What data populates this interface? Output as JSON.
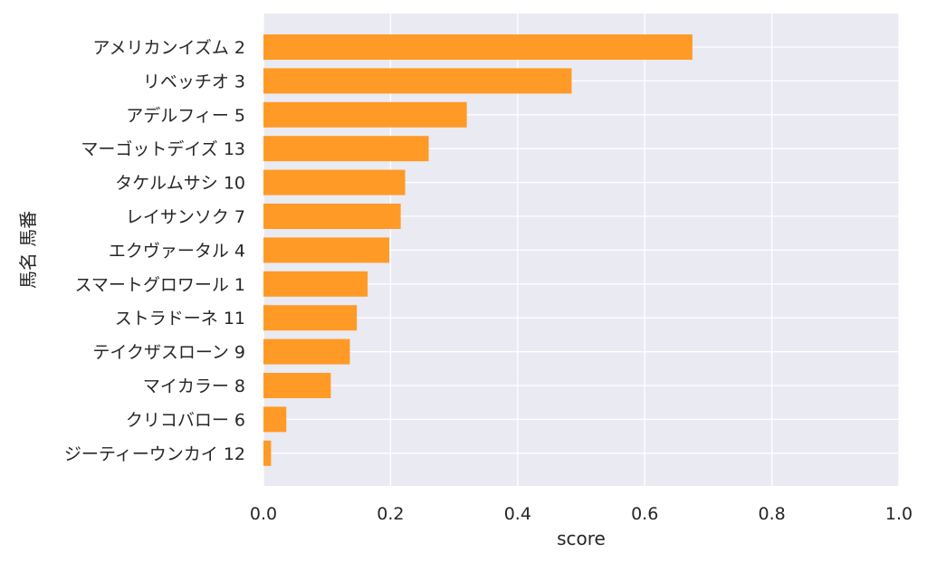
{
  "chart_data": {
    "type": "bar",
    "orientation": "horizontal",
    "categories": [
      "アメリカンイズム 2",
      "リベッチオ 3",
      "アデルフィー 5",
      "マーゴットデイズ 13",
      "タケルムサシ 10",
      "レイサンソク 7",
      "エクヴァータル 4",
      "スマートグロワール 1",
      "ストラドーネ 11",
      "テイクザスローン 9",
      "マイカラー 8",
      "クリコバロー 6",
      "ジーティーウンカイ 12"
    ],
    "values": [
      0.675,
      0.485,
      0.32,
      0.26,
      0.223,
      0.216,
      0.198,
      0.164,
      0.147,
      0.136,
      0.106,
      0.036,
      0.012
    ],
    "xlabel": "score",
    "ylabel": "馬名 馬番",
    "xlim": [
      0,
      1.0
    ],
    "xticks": [
      "0.0",
      "0.2",
      "0.4",
      "0.6",
      "0.8",
      "1.0"
    ],
    "grid": true,
    "colors": {
      "bar": "#ff9a27",
      "plot_background": "#eaeaf2",
      "grid": "#ffffff",
      "text": "#262626"
    }
  }
}
